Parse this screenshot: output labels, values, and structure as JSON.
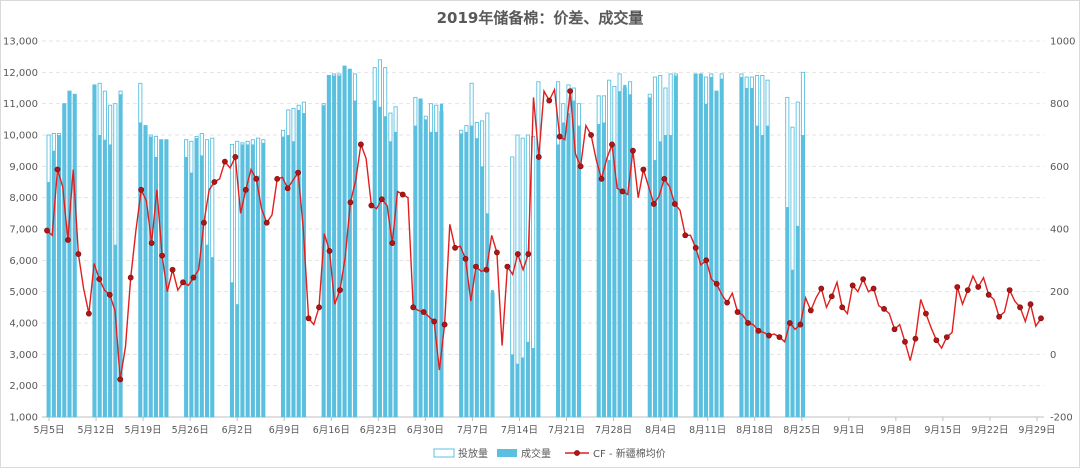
{
  "chart_data": {
    "type": "bar",
    "title": "2019年储备棉：价差、成交量",
    "x_tick_labels": [
      "5月5日",
      "5月12日",
      "5月19日",
      "5月26日",
      "6月2日",
      "6月9日",
      "6月16日",
      "6月23日",
      "6月30日",
      "7月7日",
      "7月14日",
      "7月21日",
      "7月28日",
      "8月4日",
      "8月11日",
      "8月18日",
      "8月25日",
      "9月1日",
      "9月8日",
      "9月15日",
      "9月22日",
      "9月29日"
    ],
    "left_axis": {
      "ylim": [
        1000,
        13000
      ],
      "ticks": [
        "1,000",
        "2,000",
        "3,000",
        "4,000",
        "5,000",
        "6,000",
        "7,000",
        "8,000",
        "9,000",
        "10,000",
        "11,000",
        "12,000",
        "13,000"
      ]
    },
    "right_axis": {
      "ylim": [
        -200,
        1000
      ],
      "ticks": [
        "-200",
        "0",
        "200",
        "400",
        "600",
        "800",
        "1000"
      ]
    },
    "series": [
      {
        "name": "投放量",
        "axis": "left",
        "kind": "bar-outline",
        "color": "#5bc0e0",
        "values": [
          10000,
          10050,
          10050,
          11000,
          11400,
          11300,
          11600,
          11650,
          11400,
          10950,
          11000,
          11400,
          11650,
          10300,
          10000,
          9950,
          9850,
          9850,
          9850,
          9800,
          9950,
          10050,
          9850,
          9900,
          9700,
          9800,
          9750,
          9800,
          9850,
          9900,
          9850,
          10150,
          10800,
          10850,
          10950,
          11050,
          11000,
          11900,
          11950,
          11950,
          12200,
          12100,
          11950,
          12150,
          12400,
          12150,
          10700,
          10900,
          11200,
          11150,
          10600,
          11000,
          10950,
          10750,
          10150,
          10300,
          11650,
          10400,
          10450,
          10700,
          4950,
          9300,
          10000,
          9900,
          10000,
          9950,
          11700,
          11700,
          11000,
          11600,
          11500,
          11000,
          11250,
          11250,
          11750,
          11550,
          11950,
          11500,
          11700,
          11300,
          11850,
          11900,
          11500,
          11950,
          11950,
          11950,
          11950,
          11850,
          11950,
          11400,
          11950,
          11950,
          11850,
          11850,
          11900,
          11900,
          11750,
          11200,
          10250,
          11050,
          12000
        ]
      },
      {
        "name": "成交量",
        "axis": "left",
        "kind": "bar-filled",
        "color": "#5bc0e0",
        "values": [
          8500,
          9500,
          10000,
          11000,
          11400,
          11300,
          11600,
          10000,
          9850,
          9700,
          6500,
          11300,
          10400,
          10300,
          9950,
          9300,
          9850,
          9850,
          9300,
          8800,
          9900,
          9350,
          6500,
          6100,
          5300,
          4600,
          9700,
          9700,
          9700,
          8700,
          9750,
          9950,
          10000,
          9800,
          10800,
          10700,
          10950,
          11900,
          11900,
          11900,
          12200,
          12100,
          11100,
          11100,
          10900,
          10600,
          9800,
          10100,
          10300,
          11150,
          10500,
          10100,
          10100,
          11000,
          10050,
          10100,
          10300,
          9900,
          9000,
          7500,
          5050,
          3000,
          2700,
          2900,
          3400,
          3200,
          9300,
          9700,
          10400,
          10700,
          11100,
          10300,
          10350,
          10400,
          9200,
          9700,
          11400,
          11600,
          11300,
          11200,
          9200,
          9800,
          10000,
          10000,
          11900,
          11950,
          11950,
          11000,
          11850,
          11400,
          11800,
          11850,
          11500,
          11500,
          10300,
          10000,
          10300,
          7700,
          5700,
          7100,
          10000
        ]
      },
      {
        "name": "CF - 新疆棉均价",
        "axis": "right",
        "kind": "line",
        "color": "#e11f1f",
        "values": [
          395,
          380,
          590,
          535,
          365,
          590,
          320,
          210,
          130,
          290,
          240,
          205,
          190,
          140,
          -80,
          25,
          245,
          395,
          525,
          490,
          355,
          525,
          315,
          200,
          270,
          205,
          230,
          220,
          245,
          270,
          420,
          525,
          550,
          560,
          615,
          595,
          630,
          450,
          525,
          590,
          560,
          465,
          420,
          445,
          560,
          565,
          530,
          555,
          580,
          400,
          115,
          95,
          150,
          385,
          330,
          160,
          205,
          310,
          485,
          555,
          670,
          625,
          475,
          465,
          495,
          475,
          355,
          520,
          510,
          500,
          150,
          140,
          135,
          120,
          105,
          -50,
          95,
          415,
          340,
          345,
          305,
          170,
          280,
          265,
          270,
          380,
          325,
          28,
          280,
          255,
          320,
          270,
          320,
          820,
          630,
          840,
          810,
          845,
          695,
          685,
          840,
          640,
          600,
          730,
          700,
          620,
          560,
          625,
          670,
          530,
          520,
          510,
          650,
          500,
          590,
          535,
          480,
          505,
          560,
          535,
          480,
          460,
          380,
          380,
          340,
          285,
          300,
          240,
          225,
          190,
          165,
          195,
          135,
          125,
          100,
          95,
          75,
          70,
          60,
          65,
          55,
          40,
          100,
          80,
          95,
          180,
          140,
          180,
          210,
          150,
          185,
          230,
          150,
          130,
          220,
          200,
          240,
          200,
          210,
          155,
          145,
          130,
          80,
          95,
          40,
          -20,
          50,
          175,
          130,
          85,
          45,
          20,
          55,
          70,
          215,
          160,
          205,
          250,
          215,
          245,
          190,
          175,
          120,
          135,
          205,
          170,
          150,
          105,
          160,
          90,
          115
        ]
      }
    ],
    "legend": {
      "position": "bottom",
      "labels": [
        "投放量",
        "成交量",
        "CF - 新疆棉均价"
      ]
    },
    "grid": true
  }
}
